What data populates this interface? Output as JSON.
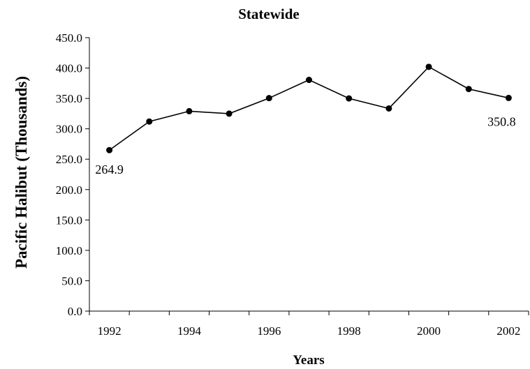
{
  "chart_data": {
    "type": "line",
    "title": "Statewide",
    "xlabel": "Years",
    "ylabel": "Pacific Halibut (Thousands)",
    "x": [
      1992,
      1993,
      1994,
      1995,
      1996,
      1997,
      1998,
      1999,
      2000,
      2001,
      2002
    ],
    "series": [
      {
        "values": [
          264.9,
          312.0,
          329.0,
          325.0,
          350.5,
          380.5,
          350.0,
          333.5,
          402.0,
          365.5,
          350.8
        ],
        "color": "#000000"
      }
    ],
    "ylim": [
      0,
      450
    ],
    "yticks": [
      "0.0",
      "50.0",
      "100.0",
      "150.0",
      "200.0",
      "250.0",
      "300.0",
      "350.0",
      "400.0",
      "450.0"
    ],
    "xticks": [
      "1992",
      "1994",
      "1996",
      "1998",
      "2000",
      "2002"
    ],
    "data_labels": [
      {
        "x": 1992,
        "text": "264.9",
        "position": "below"
      },
      {
        "x": 2002,
        "text": "350.8",
        "position": "below-left"
      }
    ],
    "grid": false,
    "legend": "none"
  }
}
